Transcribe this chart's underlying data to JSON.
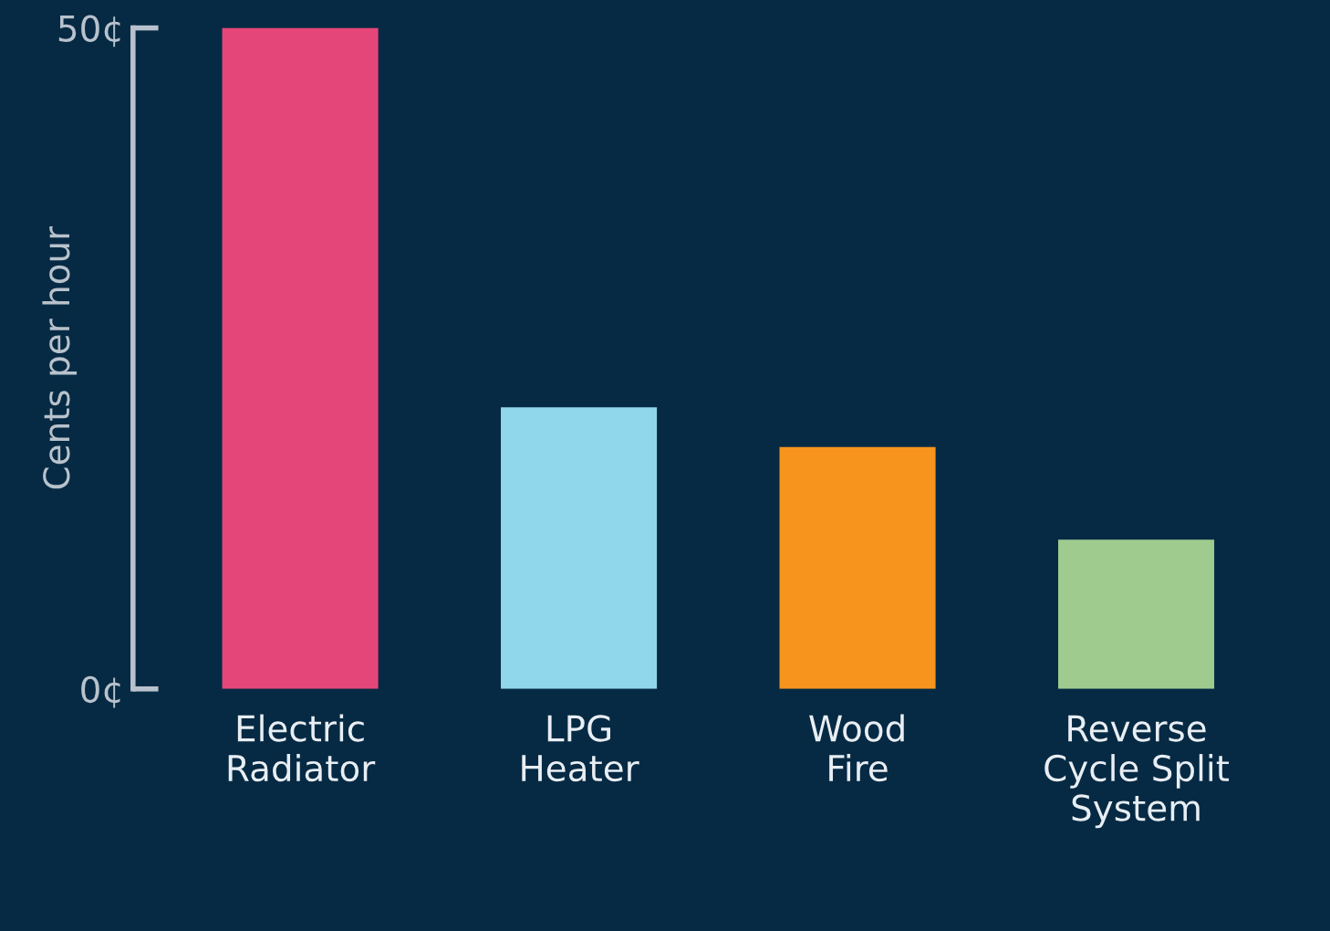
{
  "chart_data": {
    "type": "bar",
    "ylabel": "Cents per hour",
    "categories": [
      "Electric\nRadiator",
      "LPG\nHeater",
      "Wood\nFire",
      "Reverse\nCycle Split\nSystem"
    ],
    "values": [
      50,
      21.3,
      18.3,
      11.3
    ],
    "colors": [
      "#e5467a",
      "#91d7ec",
      "#f7941d",
      "#9fcb8f"
    ],
    "ylim": [
      0,
      50
    ],
    "yticks": [
      {
        "value": 0,
        "label": "0¢"
      },
      {
        "value": 50,
        "label": "50¢"
      }
    ],
    "grid": false,
    "legend": false
  }
}
